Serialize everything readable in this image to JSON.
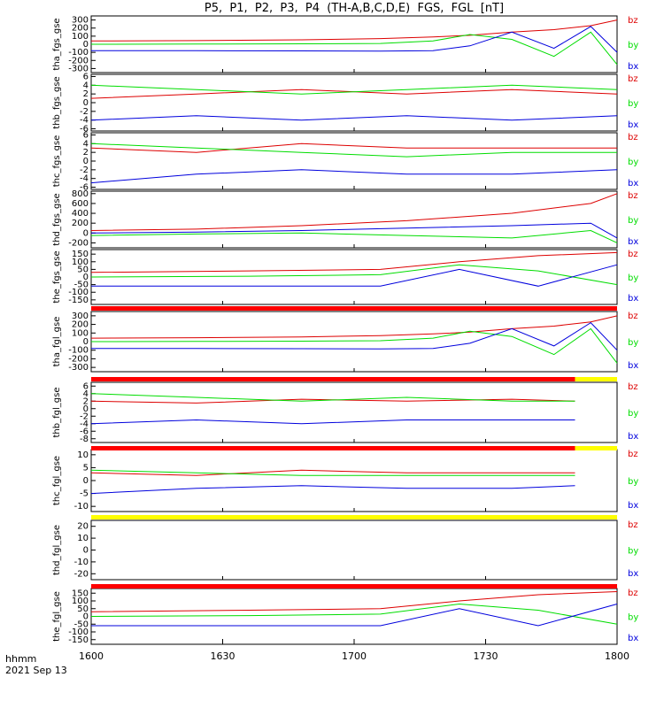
{
  "title": "P5,  P1,  P2,  P3,  P4  (TH-A,B,C,D,E)  FGS,  FGL  [nT]",
  "footer": {
    "hhmm": "hhmm",
    "date": "2021 Sep 13"
  },
  "colors": {
    "bx": "#0000dd",
    "by": "#00dd00",
    "bz": "#dd0000",
    "red_bar": "#ff0000",
    "yellow_bar": "#ffff00"
  },
  "chart_data": [
    {
      "type": "line",
      "ylabel": "tha_fgs_gse",
      "ylim": [
        -350,
        350
      ],
      "ytick_labels": [
        "300",
        "200",
        "100",
        "0",
        "-100",
        "-200",
        "-300"
      ],
      "ytick_values": [
        300,
        200,
        100,
        0,
        -100,
        -200,
        -300
      ],
      "x": [
        0,
        0.2,
        0.4,
        0.55,
        0.65,
        0.72,
        0.8,
        0.88,
        0.95,
        1.0
      ],
      "series": [
        {
          "name": "bz",
          "values": [
            40,
            45,
            55,
            70,
            90,
            110,
            150,
            180,
            230,
            300
          ]
        },
        {
          "name": "by",
          "values": [
            0,
            2,
            5,
            10,
            40,
            120,
            60,
            -150,
            150,
            -250
          ]
        },
        {
          "name": "bx",
          "values": [
            -80,
            -80,
            -82,
            -85,
            -80,
            -20,
            150,
            -50,
            220,
            -100
          ]
        }
      ]
    },
    {
      "type": "line",
      "ylabel": "thb_fgs_gse",
      "ylim": [
        -6.5,
        6.5
      ],
      "ytick_labels": [
        "6",
        "4",
        "2",
        "0",
        "-2",
        "-4",
        "-6"
      ],
      "ytick_values": [
        6,
        4,
        2,
        0,
        -2,
        -4,
        -6
      ],
      "x": [
        0,
        0.2,
        0.4,
        0.6,
        0.8,
        1.0
      ],
      "series": [
        {
          "name": "bz",
          "values": [
            1,
            2,
            3,
            2,
            3,
            2
          ]
        },
        {
          "name": "by",
          "values": [
            4,
            3,
            2,
            3,
            4,
            3
          ]
        },
        {
          "name": "bx",
          "values": [
            -4,
            -3,
            -4,
            -3,
            -4,
            -3
          ]
        }
      ]
    },
    {
      "type": "line",
      "ylabel": "thc_fgs_gse",
      "ylim": [
        -6.5,
        6.5
      ],
      "ytick_labels": [
        "6",
        "4",
        "2",
        "0",
        "-2",
        "-4",
        "-6"
      ],
      "ytick_values": [
        6,
        4,
        2,
        0,
        -2,
        -4,
        -6
      ],
      "x": [
        0,
        0.2,
        0.4,
        0.6,
        0.8,
        1.0
      ],
      "series": [
        {
          "name": "bz",
          "values": [
            3,
            2,
            4,
            3,
            3,
            3
          ]
        },
        {
          "name": "by",
          "values": [
            4,
            3,
            2,
            1,
            2,
            2
          ]
        },
        {
          "name": "bx",
          "values": [
            -5,
            -3,
            -2,
            -3,
            -3,
            -2
          ]
        }
      ]
    },
    {
      "type": "line",
      "ylabel": "thd_fgs_gse",
      "ylim": [
        -300,
        850
      ],
      "ytick_labels": [
        "800",
        "600",
        "400",
        "200",
        "0",
        "-200"
      ],
      "ytick_values": [
        800,
        600,
        400,
        200,
        0,
        -200
      ],
      "x": [
        0,
        0.2,
        0.4,
        0.6,
        0.8,
        0.95,
        1.0
      ],
      "series": [
        {
          "name": "bz",
          "values": [
            50,
            80,
            150,
            250,
            400,
            600,
            800
          ]
        },
        {
          "name": "by",
          "values": [
            -50,
            -20,
            0,
            -50,
            -100,
            50,
            -200
          ]
        },
        {
          "name": "bx",
          "values": [
            0,
            20,
            50,
            100,
            150,
            200,
            -100
          ]
        }
      ]
    },
    {
      "type": "line",
      "ylabel": "the_fgs_gse",
      "ylim": [
        -180,
        180
      ],
      "ytick_labels": [
        "150",
        "100",
        "50",
        "0",
        "-50",
        "-100",
        "-150"
      ],
      "ytick_values": [
        150,
        100,
        50,
        0,
        -50,
        -100,
        -150
      ],
      "x": [
        0,
        0.3,
        0.55,
        0.7,
        0.85,
        1.0
      ],
      "series": [
        {
          "name": "bz",
          "values": [
            30,
            40,
            50,
            100,
            140,
            160
          ]
        },
        {
          "name": "by",
          "values": [
            0,
            5,
            15,
            80,
            40,
            -50
          ]
        },
        {
          "name": "bx",
          "values": [
            -60,
            -60,
            -60,
            50,
            -60,
            80
          ]
        }
      ]
    },
    {
      "type": "line",
      "ylabel": "tha_fgl_gse",
      "ylim": [
        -350,
        350
      ],
      "ytick_labels": [
        "300",
        "200",
        "100",
        "0",
        "-100",
        "-200",
        "-300"
      ],
      "ytick_values": [
        300,
        200,
        100,
        0,
        -100,
        -200,
        -300
      ],
      "x": [
        0,
        0.2,
        0.4,
        0.55,
        0.65,
        0.72,
        0.8,
        0.88,
        0.95,
        1.0
      ],
      "series": [
        {
          "name": "bz",
          "values": [
            40,
            45,
            55,
            70,
            90,
            110,
            150,
            180,
            230,
            300
          ]
        },
        {
          "name": "by",
          "values": [
            0,
            2,
            5,
            10,
            40,
            120,
            60,
            -150,
            150,
            -250
          ]
        },
        {
          "name": "bx",
          "values": [
            -80,
            -80,
            -82,
            -85,
            -80,
            -20,
            150,
            -50,
            220,
            -100
          ]
        }
      ]
    },
    {
      "type": "line",
      "ylabel": "thb_fgl_gse",
      "ylim": [
        -9,
        7
      ],
      "ytick_labels": [
        "6",
        "4",
        "2",
        "0",
        "-2",
        "-4",
        "-6",
        "-8"
      ],
      "ytick_values": [
        6,
        4,
        2,
        0,
        -2,
        -4,
        -6,
        -8
      ],
      "x": [
        0,
        0.2,
        0.4,
        0.6,
        0.8,
        0.92
      ],
      "series": [
        {
          "name": "bz",
          "values": [
            2,
            1.5,
            2.5,
            2,
            2.5,
            2
          ]
        },
        {
          "name": "by",
          "values": [
            4,
            3,
            2,
            3,
            2,
            2
          ]
        },
        {
          "name": "bx",
          "values": [
            -4,
            -3,
            -4,
            -3,
            -3,
            -3
          ]
        }
      ]
    },
    {
      "type": "line",
      "ylabel": "thc_fgl_gse",
      "ylim": [
        -12,
        12
      ],
      "ytick_labels": [
        "10",
        "5",
        "0",
        "-5",
        "-10"
      ],
      "ytick_values": [
        10,
        5,
        0,
        -5,
        -10
      ],
      "x": [
        0,
        0.2,
        0.4,
        0.6,
        0.8,
        0.92
      ],
      "series": [
        {
          "name": "bz",
          "values": [
            3,
            2,
            4,
            3,
            3,
            3
          ]
        },
        {
          "name": "by",
          "values": [
            4,
            3,
            2,
            2,
            2,
            2
          ]
        },
        {
          "name": "bx",
          "values": [
            -5,
            -3,
            -2,
            -3,
            -3,
            -2
          ]
        }
      ]
    },
    {
      "type": "line",
      "ylabel": "thd_fgl_gse",
      "ylim": [
        -25,
        25
      ],
      "ytick_labels": [
        "20",
        "10",
        "0",
        "-10",
        "-20"
      ],
      "ytick_values": [
        20,
        10,
        0,
        -10,
        -20
      ],
      "x": [],
      "series": [
        {
          "name": "bz",
          "values": []
        },
        {
          "name": "by",
          "values": []
        },
        {
          "name": "bx",
          "values": []
        }
      ]
    },
    {
      "type": "line",
      "ylabel": "the_fgl_gse",
      "ylim": [
        -180,
        180
      ],
      "ytick_labels": [
        "150",
        "100",
        "50",
        "0",
        "-50",
        "-100",
        "-150"
      ],
      "ytick_values": [
        150,
        100,
        50,
        0,
        -50,
        -100,
        -150
      ],
      "x": [
        0,
        0.3,
        0.55,
        0.7,
        0.85,
        1.0
      ],
      "series": [
        {
          "name": "bz",
          "values": [
            30,
            40,
            50,
            100,
            140,
            160
          ]
        },
        {
          "name": "by",
          "values": [
            0,
            5,
            15,
            80,
            40,
            -50
          ]
        },
        {
          "name": "bx",
          "values": [
            -60,
            -60,
            -60,
            50,
            -60,
            80
          ]
        }
      ]
    }
  ],
  "x_axis": {
    "tick_labels": [
      "1600",
      "1630",
      "1700",
      "1730",
      "1800"
    ],
    "tick_fractions": [
      0,
      0.25,
      0.5,
      0.75,
      1.0
    ]
  },
  "legend": [
    "bz",
    "by",
    "bx"
  ],
  "status_bars": [
    {
      "after_panel": 4,
      "segments": [
        {
          "from": 0,
          "to": 1,
          "color": "red"
        }
      ]
    },
    {
      "after_panel": 5,
      "segments": [
        {
          "from": 0,
          "to": 0.92,
          "color": "red"
        },
        {
          "from": 0.92,
          "to": 1,
          "color": "yellow"
        }
      ]
    },
    {
      "after_panel": 6,
      "segments": [
        {
          "from": 0,
          "to": 0.92,
          "color": "red"
        },
        {
          "from": 0.92,
          "to": 1,
          "color": "yellow"
        }
      ]
    },
    {
      "after_panel": 7,
      "segments": [
        {
          "from": 0,
          "to": 1,
          "color": "yellow"
        }
      ]
    },
    {
      "after_panel": 8,
      "segments": [
        {
          "from": 0,
          "to": 1,
          "color": "red"
        }
      ]
    }
  ]
}
